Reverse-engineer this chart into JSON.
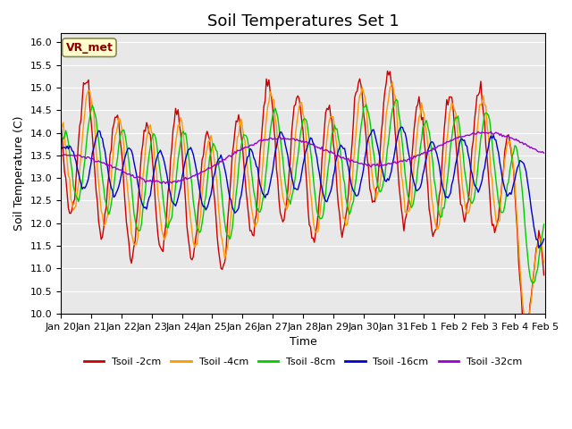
{
  "title": "Soil Temperatures Set 1",
  "xlabel": "Time",
  "ylabel": "Soil Temperature (C)",
  "ylim": [
    10.0,
    16.2
  ],
  "yticks": [
    10.0,
    10.5,
    11.0,
    11.5,
    12.0,
    12.5,
    13.0,
    13.5,
    14.0,
    14.5,
    15.0,
    15.5,
    16.0
  ],
  "bg_color": "#e8e8e8",
  "series_colors": {
    "2cm": "#cc0000",
    "4cm": "#ff9900",
    "8cm": "#00cc00",
    "16cm": "#0000cc",
    "32cm": "#9900cc"
  },
  "series_labels": [
    "Tsoil -2cm",
    "Tsoil -4cm",
    "Tsoil -8cm",
    "Tsoil -16cm",
    "Tsoil -32cm"
  ],
  "legend_label": "VR_met",
  "n_days": 16,
  "figsize": [
    6.4,
    4.8
  ],
  "dpi": 100
}
